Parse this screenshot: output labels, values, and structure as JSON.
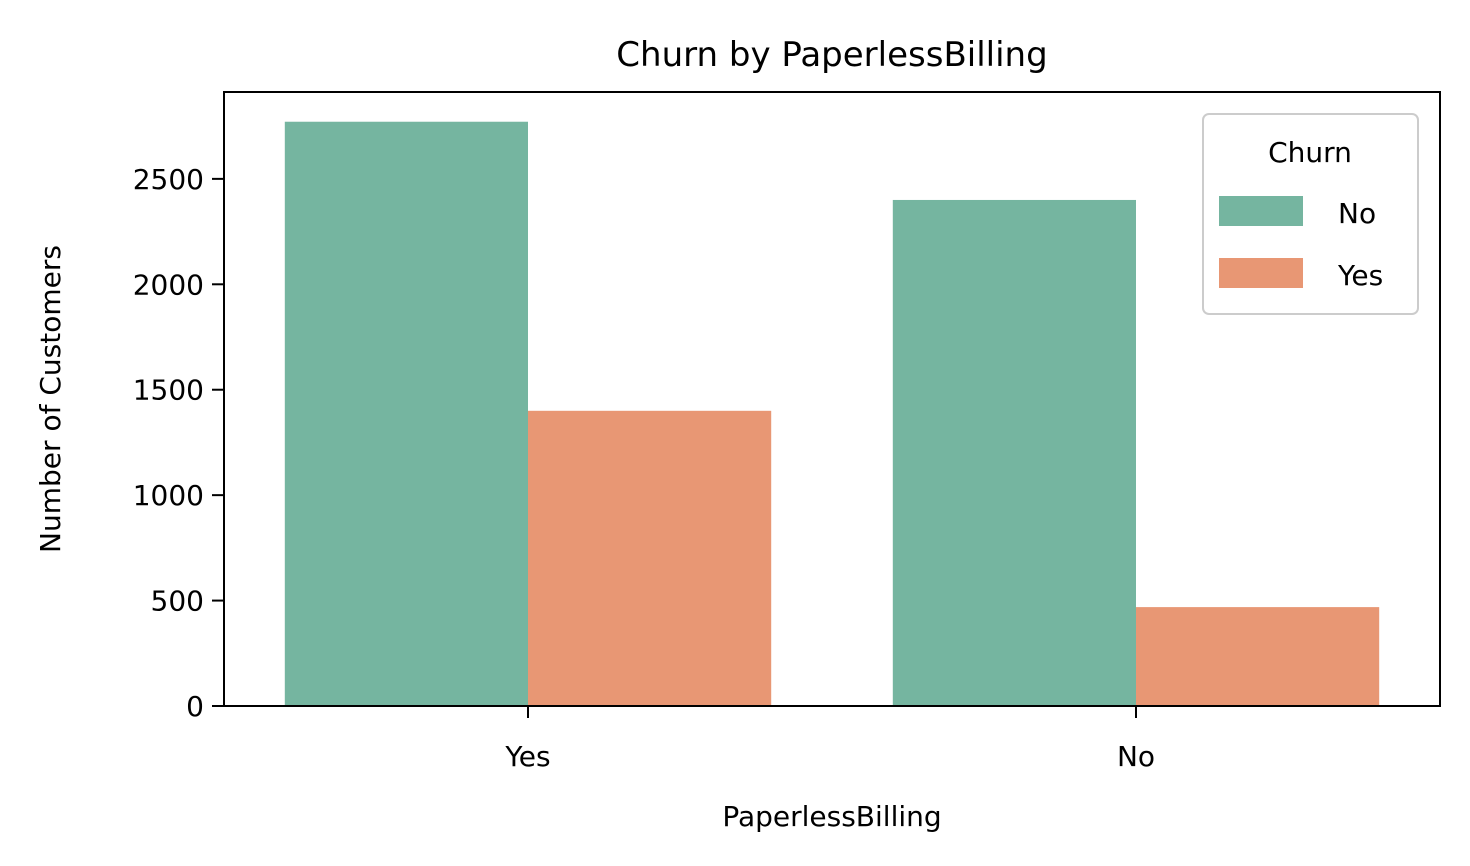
{
  "chart_data": {
    "type": "bar",
    "title": "Churn by PaperlessBilling",
    "xlabel": "PaperlessBilling",
    "ylabel": "Number of Customers",
    "categories": [
      "Yes",
      "No"
    ],
    "series": [
      {
        "name": "No",
        "values": [
          2771,
          2400
        ],
        "color": "#75b5a0"
      },
      {
        "name": "Yes",
        "values": [
          1400,
          469
        ],
        "color": "#e89774"
      }
    ],
    "ylim": [
      0,
      2912
    ],
    "yticks": [
      0,
      500,
      1000,
      1500,
      2000,
      2500
    ],
    "ytick_labels": [
      "0",
      "500",
      "1000",
      "1500",
      "2000",
      "2500"
    ],
    "legend": {
      "title": "Churn",
      "position": "top-right"
    },
    "grid": false
  }
}
